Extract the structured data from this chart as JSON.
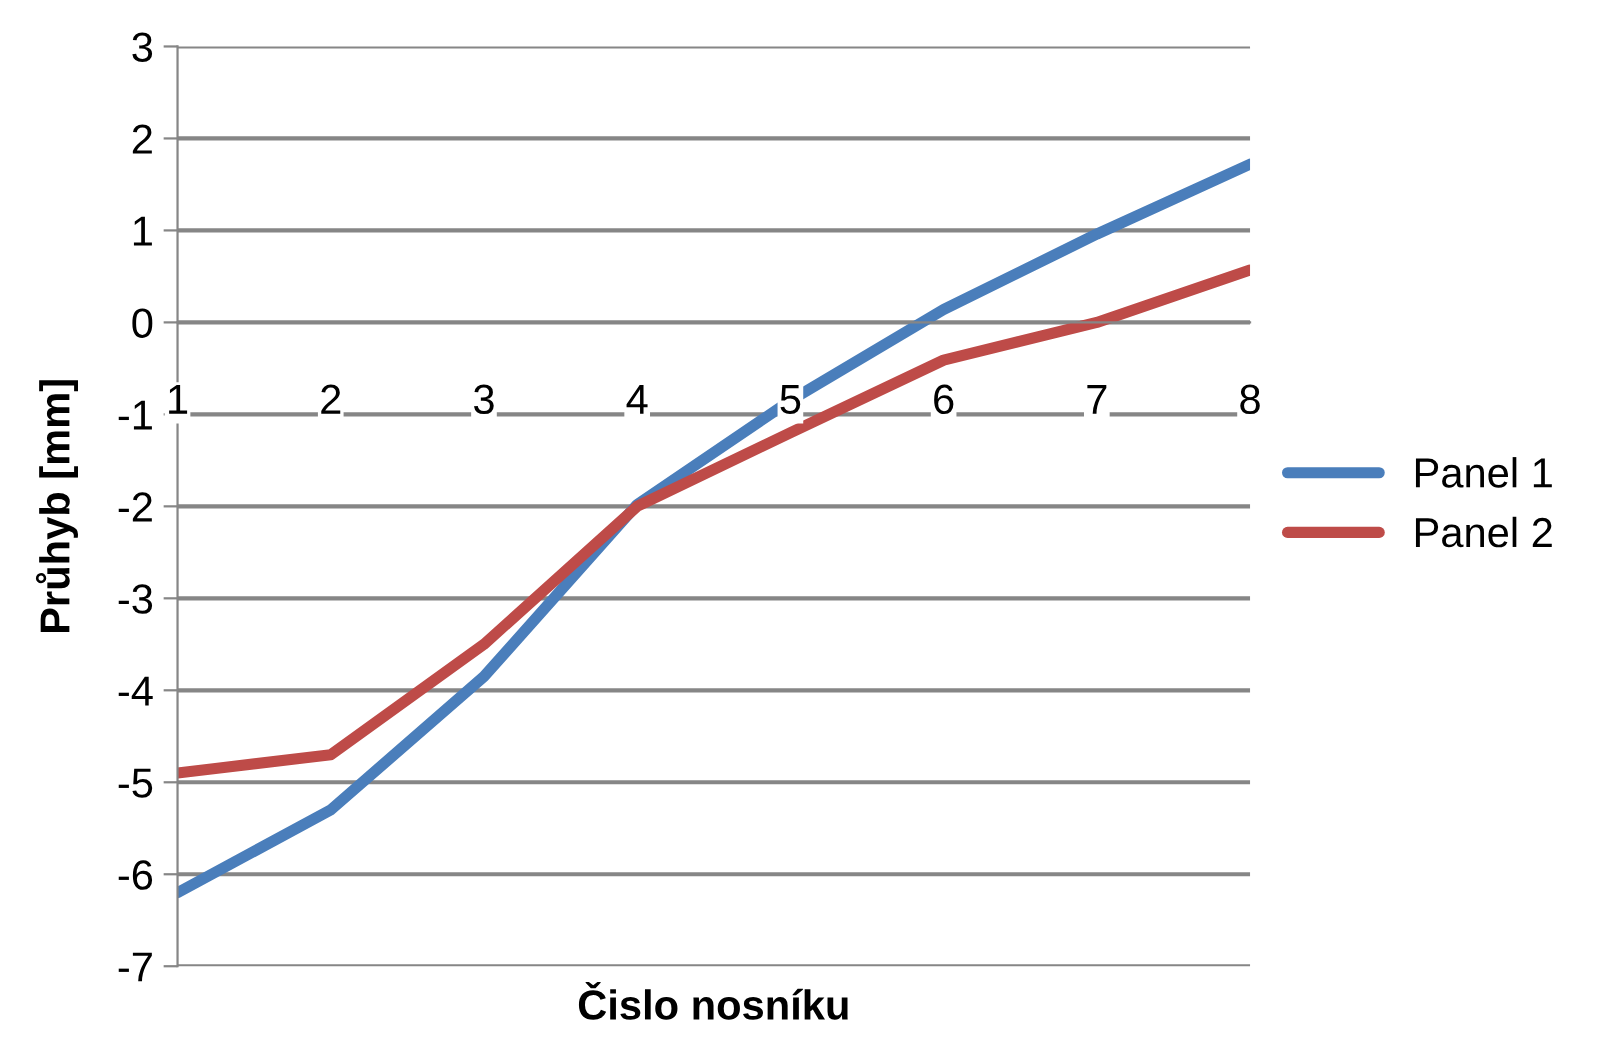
{
  "chart_data": {
    "type": "line",
    "xlabel": "Čislo nosníku",
    "ylabel": "Průhyb [mm]",
    "categories": [
      "1",
      "2",
      "3",
      "4",
      "5",
      "6",
      "7",
      "8"
    ],
    "series": [
      {
        "name": "Panel 1",
        "color": "#4a7ebb",
        "values": [
          -6.2,
          -5.3,
          -3.85,
          -1.98,
          -0.85,
          0.14,
          0.96,
          1.72
        ]
      },
      {
        "name": "Panel 2",
        "color": "#be4b48",
        "values": [
          -4.9,
          -4.7,
          -3.5,
          -2.0,
          -1.2,
          -0.41,
          0.0,
          0.57
        ]
      }
    ],
    "ylim": [
      -7,
      3
    ],
    "yticks": [
      -7,
      -6,
      -5,
      -4,
      -3,
      -2,
      -1,
      0,
      1,
      2,
      3
    ],
    "grid": "y",
    "legend": "right",
    "marker": "none",
    "line_style": "solid"
  }
}
